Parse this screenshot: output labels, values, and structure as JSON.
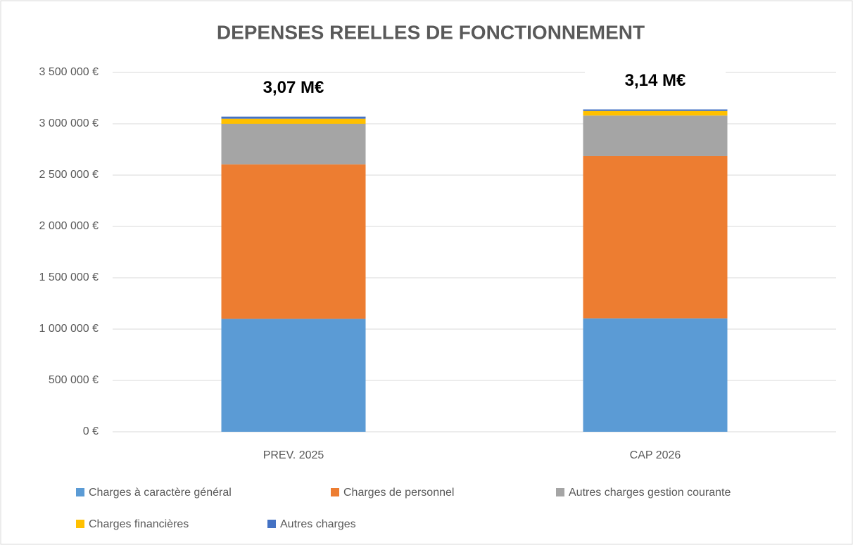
{
  "chart_data": {
    "type": "stacked_bar",
    "title": "DEPENSES REELLES DE FONCTIONNEMENT",
    "categories": [
      "PREV. 2025",
      "CAP 2026"
    ],
    "series": [
      {
        "name": "Charges à caractère général",
        "color": "#5b9bd5",
        "values": [
          1100000,
          1105000
        ]
      },
      {
        "name": "Charges de personnel",
        "color": "#ed7d31",
        "values": [
          1505000,
          1580000
        ]
      },
      {
        "name": "Autres charges gestion courante",
        "color": "#a5a5a5",
        "values": [
          395000,
          395000
        ]
      },
      {
        "name": "Charges financières",
        "color": "#ffc000",
        "values": [
          50000,
          45000
        ]
      },
      {
        "name": "Autres charges",
        "color": "#4472c4",
        "values": [
          20000,
          15000
        ]
      }
    ],
    "total_labels": [
      "3,07 M€",
      "3,14 M€"
    ],
    "ylim": [
      0,
      3500000
    ],
    "yticks": [
      {
        "value": 0,
        "label": "0 €"
      },
      {
        "value": 500000,
        "label": "500 000 €"
      },
      {
        "value": 1000000,
        "label": "1 000 000 €"
      },
      {
        "value": 1500000,
        "label": "1 500 000 €"
      },
      {
        "value": 2000000,
        "label": "2 000 000 €"
      },
      {
        "value": 2500000,
        "label": "2 500 000 €"
      },
      {
        "value": 3000000,
        "label": "3 000 000 €"
      },
      {
        "value": 3500000,
        "label": "3 500 000 €"
      }
    ],
    "grid": true,
    "legend": "bottom"
  }
}
